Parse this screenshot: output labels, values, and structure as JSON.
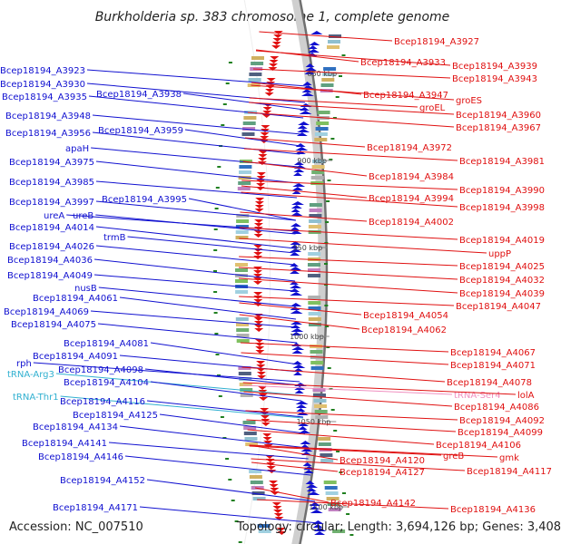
{
  "title": "Burkholderia sp. 383 chromosome 1, complete genome",
  "footer": {
    "accession": "Accession: NC_007510",
    "topology": "Topology: circular; Length: 3,694,126 bp; Genes: 3,408"
  },
  "colors": {
    "forward_strand": "#1010d0",
    "reverse_strand": "#e01010",
    "trna": "#30b0d0",
    "trna_reverse": "#f090c0",
    "tick_label": "#444444",
    "ruler_line": "#888888"
  },
  "ruler_ticks": [
    "850 kbp",
    "900 kbp",
    "950 kbp",
    "1000 kbp",
    "1050 kbp",
    "1100 kbp"
  ],
  "left_labels": [
    {
      "text": "Bcep18194_A3923",
      "type": "gene"
    },
    {
      "text": "Bcep18194_A3930",
      "type": "gene"
    },
    {
      "text": "Bcep18194_A3935",
      "type": "gene"
    },
    {
      "text": "Bcep18194_A3938",
      "type": "gene"
    },
    {
      "text": "Bcep18194_A3948",
      "type": "gene"
    },
    {
      "text": "Bcep18194_A3956",
      "type": "gene"
    },
    {
      "text": "Bcep18194_A3959",
      "type": "gene"
    },
    {
      "text": "apaH",
      "type": "gene"
    },
    {
      "text": "Bcep18194_A3975",
      "type": "gene"
    },
    {
      "text": "Bcep18194_A3985",
      "type": "gene"
    },
    {
      "text": "Bcep18194_A3997",
      "type": "gene"
    },
    {
      "text": "Bcep18194_A3995",
      "type": "gene"
    },
    {
      "text": "ureA",
      "type": "gene"
    },
    {
      "text": "ureB",
      "type": "gene"
    },
    {
      "text": "Bcep18194_A4014",
      "type": "gene"
    },
    {
      "text": "trmB",
      "type": "gene"
    },
    {
      "text": "Bcep18194_A4026",
      "type": "gene"
    },
    {
      "text": "Bcep18194_A4036",
      "type": "gene"
    },
    {
      "text": "Bcep18194_A4049",
      "type": "gene"
    },
    {
      "text": "nusB",
      "type": "gene"
    },
    {
      "text": "Bcep18194_A4061",
      "type": "gene"
    },
    {
      "text": "Bcep18194_A4069",
      "type": "gene"
    },
    {
      "text": "Bcep18194_A4075",
      "type": "gene"
    },
    {
      "text": "Bcep18194_A4081",
      "type": "gene"
    },
    {
      "text": "Bcep18194_A4091",
      "type": "gene"
    },
    {
      "text": "rph",
      "type": "gene"
    },
    {
      "text": "tRNA-Arg3",
      "type": "trna"
    },
    {
      "text": "Bcep18194_A4098",
      "type": "gene"
    },
    {
      "text": "Bcep18194_A4104",
      "type": "gene"
    },
    {
      "text": "tRNA-Thr1",
      "type": "trna"
    },
    {
      "text": "Bcep18194_A4116",
      "type": "gene"
    },
    {
      "text": "Bcep18194_A4125",
      "type": "gene"
    },
    {
      "text": "Bcep18194_A4134",
      "type": "gene"
    },
    {
      "text": "Bcep18194_A4141",
      "type": "gene"
    },
    {
      "text": "Bcep18194_A4146",
      "type": "gene"
    },
    {
      "text": "Bcep18194_A4152",
      "type": "gene"
    },
    {
      "text": "Bcep18194_A4171",
      "type": "gene"
    }
  ],
  "right_labels": [
    {
      "text": "Bcep18194_A3927",
      "type": "gene"
    },
    {
      "text": "Bcep18194_A3933",
      "type": "gene"
    },
    {
      "text": "Bcep18194_A3939",
      "type": "gene"
    },
    {
      "text": "Bcep18194_A3943",
      "type": "gene"
    },
    {
      "text": "Bcep18194_A3947",
      "type": "gene"
    },
    {
      "text": "groES",
      "type": "gene"
    },
    {
      "text": "groEL",
      "type": "gene"
    },
    {
      "text": "Bcep18194_A3960",
      "type": "gene"
    },
    {
      "text": "Bcep18194_A3967",
      "type": "gene"
    },
    {
      "text": "Bcep18194_A3972",
      "type": "gene"
    },
    {
      "text": "Bcep18194_A3981",
      "type": "gene"
    },
    {
      "text": "Bcep18194_A3984",
      "type": "gene"
    },
    {
      "text": "Bcep18194_A3990",
      "type": "gene"
    },
    {
      "text": "Bcep18194_A3994",
      "type": "gene"
    },
    {
      "text": "Bcep18194_A3998",
      "type": "gene"
    },
    {
      "text": "Bcep18194_A4002",
      "type": "gene"
    },
    {
      "text": "Bcep18194_A4019",
      "type": "gene"
    },
    {
      "text": "uppP",
      "type": "gene"
    },
    {
      "text": "Bcep18194_A4025",
      "type": "gene"
    },
    {
      "text": "Bcep18194_A4032",
      "type": "gene"
    },
    {
      "text": "Bcep18194_A4039",
      "type": "gene"
    },
    {
      "text": "Bcep18194_A4047",
      "type": "gene"
    },
    {
      "text": "Bcep18194_A4054",
      "type": "gene"
    },
    {
      "text": "Bcep18194_A4062",
      "type": "gene"
    },
    {
      "text": "Bcep18194_A4067",
      "type": "gene"
    },
    {
      "text": "Bcep18194_A4071",
      "type": "gene"
    },
    {
      "text": "Bcep18194_A4078",
      "type": "gene"
    },
    {
      "text": "tRNA-Ser4",
      "type": "trna_reverse"
    },
    {
      "text": "lolA",
      "type": "gene"
    },
    {
      "text": "Bcep18194_A4086",
      "type": "gene"
    },
    {
      "text": "Bcep18194_A4092",
      "type": "gene"
    },
    {
      "text": "Bcep18194_A4099",
      "type": "gene"
    },
    {
      "text": "Bcep18194_A4106",
      "type": "gene"
    },
    {
      "text": "greB",
      "type": "gene"
    },
    {
      "text": "gmk",
      "type": "gene"
    },
    {
      "text": "Bcep18194_A4120",
      "type": "gene"
    },
    {
      "text": "Bcep18194_A4127",
      "type": "gene"
    },
    {
      "text": "Bcep18194_A4117",
      "type": "gene"
    },
    {
      "text": "Bcep18194_A4142",
      "type": "gene"
    },
    {
      "text": "Bcep18194_A4136",
      "type": "gene"
    }
  ]
}
